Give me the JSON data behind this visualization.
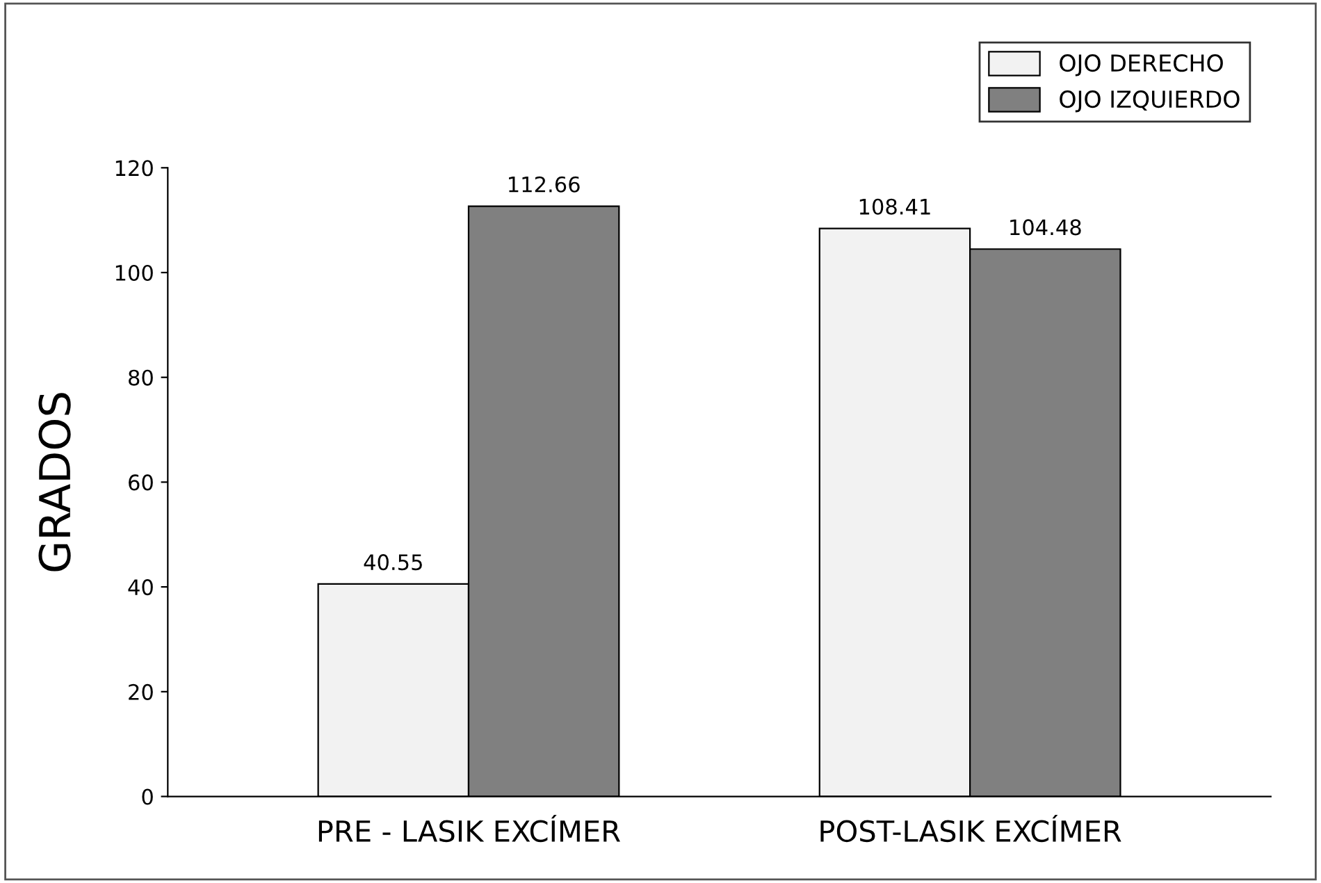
{
  "chart_data": {
    "type": "bar",
    "ylabel": "GRADOS",
    "categories": [
      "PRE - LASIK EXCÍMER",
      "POST-LASIK EXCÍMER"
    ],
    "series": [
      {
        "name": "OJO DERECHO",
        "color": "#f2f2f2",
        "values": [
          40.55,
          108.41
        ]
      },
      {
        "name": "OJO IZQUIERDO",
        "color": "#808080",
        "values": [
          112.66,
          104.48
        ]
      }
    ],
    "ylim": [
      0,
      120
    ],
    "yticks": [
      0,
      20,
      40,
      60,
      80,
      100,
      120
    ],
    "data_labels": true,
    "legend": "top right",
    "grid": false
  }
}
